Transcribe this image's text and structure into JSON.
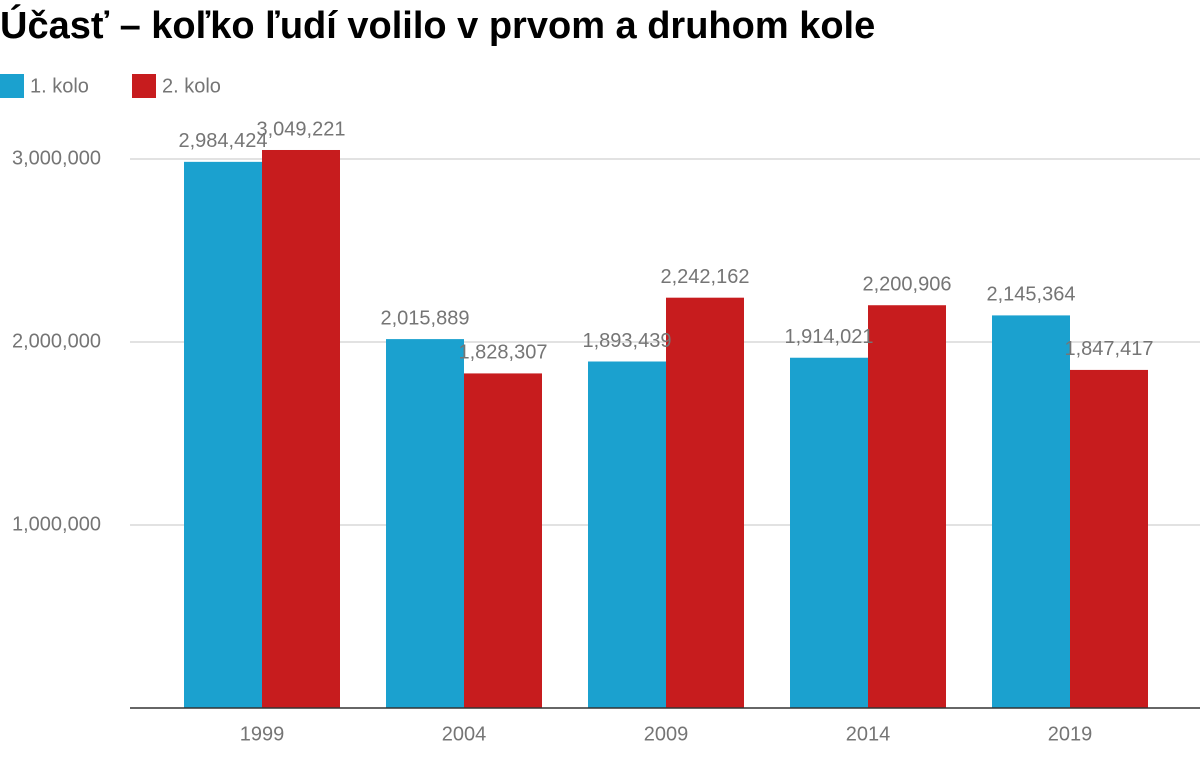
{
  "chart_data": {
    "type": "bar",
    "title": "Účasť – koľko ľudí volilo v prvom a druhom kole",
    "categories": [
      "1999",
      "2004",
      "2009",
      "2014",
      "2019"
    ],
    "series": [
      {
        "name": "1. kolo",
        "color": "#1ba1cf",
        "values": [
          2984424,
          2015889,
          1893439,
          1914021,
          2145364
        ],
        "value_labels": [
          "2,984,424",
          "2,015,889",
          "1,893,439",
          "1,914,021",
          "2,145,364"
        ]
      },
      {
        "name": "2. kolo",
        "color": "#c71c1e",
        "values": [
          3049221,
          1828307,
          2242162,
          2200906,
          1847417
        ],
        "value_labels": [
          "3,049,221",
          "1,828,307",
          "2,242,162",
          "2,200,906",
          "1,847,417"
        ]
      }
    ],
    "ylim": [
      0,
      3000000
    ],
    "yticks": [
      {
        "value": 1000000,
        "label": "1,000,000"
      },
      {
        "value": 2000000,
        "label": "2,000,000"
      },
      {
        "value": 3000000,
        "label": "3,000,000"
      }
    ],
    "grid": true,
    "legend": "top-left"
  }
}
